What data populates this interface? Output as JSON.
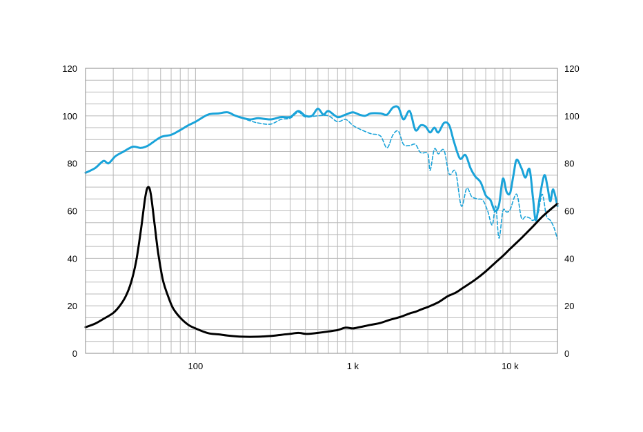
{
  "chart_data": {
    "type": "line",
    "title": "",
    "xlabel": "",
    "ylabel": "",
    "x_scale": "log",
    "xlim": [
      20,
      20000
    ],
    "ylim": [
      0,
      120
    ],
    "grid": true,
    "legend": "none",
    "y_ticks": [
      {
        "value": 0,
        "label": "0"
      },
      {
        "value": 20,
        "label": "20"
      },
      {
        "value": 40,
        "label": "40"
      },
      {
        "value": 60,
        "label": "60"
      },
      {
        "value": 80,
        "label": "80"
      },
      {
        "value": 100,
        "label": "100"
      },
      {
        "value": 120,
        "label": "120"
      }
    ],
    "x_ticks": [
      {
        "value": 100,
        "label": "100"
      },
      {
        "value": 1000,
        "label": "1 k"
      },
      {
        "value": 10000,
        "label": "10 k"
      }
    ],
    "series": [
      {
        "color": "#1aa3d9",
        "style": "solid",
        "points": [
          [
            20,
            76
          ],
          [
            23,
            78
          ],
          [
            26,
            81
          ],
          [
            28,
            80
          ],
          [
            31,
            83
          ],
          [
            35,
            85
          ],
          [
            40,
            87
          ],
          [
            45,
            86.5
          ],
          [
            50,
            87.5
          ],
          [
            60,
            91
          ],
          [
            70,
            92
          ],
          [
            80,
            94
          ],
          [
            90,
            96
          ],
          [
            100,
            97.5
          ],
          [
            120,
            100.5
          ],
          [
            140,
            101
          ],
          [
            160,
            101.5
          ],
          [
            180,
            100
          ],
          [
            220,
            98.5
          ],
          [
            250,
            99
          ],
          [
            300,
            98.5
          ],
          [
            350,
            99.5
          ],
          [
            400,
            99.5
          ],
          [
            450,
            102
          ],
          [
            500,
            100
          ],
          [
            550,
            100
          ],
          [
            600,
            103
          ],
          [
            650,
            100.5
          ],
          [
            700,
            102
          ],
          [
            800,
            99.5
          ],
          [
            900,
            100.5
          ],
          [
            1000,
            101.5
          ],
          [
            1100,
            100.5
          ],
          [
            1200,
            100
          ],
          [
            1300,
            101
          ],
          [
            1500,
            101
          ],
          [
            1650,
            100.5
          ],
          [
            1800,
            103.5
          ],
          [
            1950,
            103.5
          ],
          [
            2100,
            98.5
          ],
          [
            2300,
            102
          ],
          [
            2500,
            94
          ],
          [
            2700,
            96
          ],
          [
            2900,
            95.5
          ],
          [
            3100,
            93
          ],
          [
            3300,
            95
          ],
          [
            3500,
            93
          ],
          [
            3800,
            97
          ],
          [
            4100,
            96
          ],
          [
            4400,
            89
          ],
          [
            4800,
            82
          ],
          [
            5200,
            83.5
          ],
          [
            5600,
            78
          ],
          [
            6000,
            74.5
          ],
          [
            6500,
            72
          ],
          [
            7000,
            66.5
          ],
          [
            7500,
            64.5
          ],
          [
            8000,
            60
          ],
          [
            8500,
            62.5
          ],
          [
            9000,
            73.5
          ],
          [
            9500,
            68
          ],
          [
            10000,
            67.5
          ],
          [
            10500,
            75
          ],
          [
            11000,
            81.5
          ],
          [
            11800,
            78
          ],
          [
            12500,
            74
          ],
          [
            13300,
            77.5
          ],
          [
            14000,
            65
          ],
          [
            14600,
            56
          ],
          [
            15500,
            66.5
          ],
          [
            16500,
            75
          ],
          [
            17300,
            70
          ],
          [
            18000,
            64
          ],
          [
            18800,
            69
          ],
          [
            20000,
            62
          ]
        ]
      },
      {
        "color": "#1aa3d9",
        "style": "dashed",
        "points": [
          [
            20,
            76
          ],
          [
            23,
            78
          ],
          [
            26,
            81
          ],
          [
            28,
            80
          ],
          [
            31,
            83
          ],
          [
            35,
            85
          ],
          [
            40,
            87
          ],
          [
            45,
            86.5
          ],
          [
            50,
            87.5
          ],
          [
            60,
            91
          ],
          [
            70,
            92
          ],
          [
            80,
            94
          ],
          [
            90,
            96
          ],
          [
            100,
            97.5
          ],
          [
            120,
            100.5
          ],
          [
            140,
            101
          ],
          [
            160,
            101.5
          ],
          [
            180,
            100
          ],
          [
            220,
            98
          ],
          [
            250,
            97
          ],
          [
            300,
            96.5
          ],
          [
            350,
            98.5
          ],
          [
            400,
            99
          ],
          [
            450,
            101.5
          ],
          [
            500,
            99.5
          ],
          [
            600,
            100
          ],
          [
            700,
            100
          ],
          [
            800,
            97.5
          ],
          [
            900,
            98.5
          ],
          [
            1000,
            96
          ],
          [
            1100,
            94.5
          ],
          [
            1300,
            92.5
          ],
          [
            1500,
            91.5
          ],
          [
            1650,
            86.5
          ],
          [
            1800,
            92
          ],
          [
            1950,
            93.5
          ],
          [
            2100,
            88
          ],
          [
            2300,
            87.5
          ],
          [
            2500,
            88
          ],
          [
            2700,
            84.5
          ],
          [
            3000,
            84
          ],
          [
            3100,
            77
          ],
          [
            3300,
            86
          ],
          [
            3500,
            84
          ],
          [
            3800,
            85.5
          ],
          [
            4100,
            75.5
          ],
          [
            4500,
            76.5
          ],
          [
            4900,
            62
          ],
          [
            5300,
            69.5
          ],
          [
            5700,
            66
          ],
          [
            6200,
            65
          ],
          [
            6700,
            64.5
          ],
          [
            7200,
            60
          ],
          [
            7700,
            54
          ],
          [
            8100,
            62
          ],
          [
            8500,
            48.5
          ],
          [
            9000,
            60
          ],
          [
            9500,
            59.5
          ],
          [
            10000,
            60.5
          ],
          [
            11000,
            67
          ],
          [
            11800,
            57
          ],
          [
            12500,
            57.5
          ],
          [
            13300,
            57
          ],
          [
            14000,
            56
          ],
          [
            15000,
            58.5
          ],
          [
            16000,
            67
          ],
          [
            17000,
            58
          ],
          [
            18000,
            56
          ],
          [
            19000,
            53
          ],
          [
            20000,
            48
          ]
        ]
      },
      {
        "color": "#000000",
        "style": "solid",
        "points": [
          [
            20,
            11
          ],
          [
            23,
            12.5
          ],
          [
            26,
            14.5
          ],
          [
            30,
            17
          ],
          [
            33,
            20
          ],
          [
            36,
            24
          ],
          [
            39,
            30
          ],
          [
            42,
            39
          ],
          [
            45,
            52
          ],
          [
            48,
            66
          ],
          [
            50,
            70
          ],
          [
            52,
            67
          ],
          [
            55,
            54
          ],
          [
            58,
            42
          ],
          [
            62,
            31
          ],
          [
            67,
            24
          ],
          [
            72,
            19
          ],
          [
            80,
            15
          ],
          [
            90,
            12
          ],
          [
            100,
            10.5
          ],
          [
            120,
            8.5
          ],
          [
            140,
            8
          ],
          [
            160,
            7.5
          ],
          [
            200,
            7
          ],
          [
            250,
            7
          ],
          [
            300,
            7.3
          ],
          [
            350,
            7.8
          ],
          [
            400,
            8.2
          ],
          [
            450,
            8.6
          ],
          [
            500,
            8.2
          ],
          [
            550,
            8.3
          ],
          [
            600,
            8.6
          ],
          [
            700,
            9.2
          ],
          [
            800,
            9.8
          ],
          [
            900,
            10.8
          ],
          [
            1000,
            10.5
          ],
          [
            1100,
            11
          ],
          [
            1200,
            11.5
          ],
          [
            1300,
            12
          ],
          [
            1500,
            12.8
          ],
          [
            1700,
            14
          ],
          [
            2000,
            15.3
          ],
          [
            2300,
            16.8
          ],
          [
            2500,
            17.5
          ],
          [
            2800,
            18.8
          ],
          [
            3000,
            19.5
          ],
          [
            3500,
            21.5
          ],
          [
            4000,
            24
          ],
          [
            4500,
            25.5
          ],
          [
            5000,
            27.5
          ],
          [
            6000,
            31
          ],
          [
            7000,
            34.5
          ],
          [
            8000,
            38
          ],
          [
            9000,
            41
          ],
          [
            10000,
            44
          ],
          [
            12000,
            49
          ],
          [
            14000,
            53.5
          ],
          [
            16000,
            57.5
          ],
          [
            18000,
            60.5
          ],
          [
            20000,
            63
          ]
        ]
      }
    ]
  }
}
